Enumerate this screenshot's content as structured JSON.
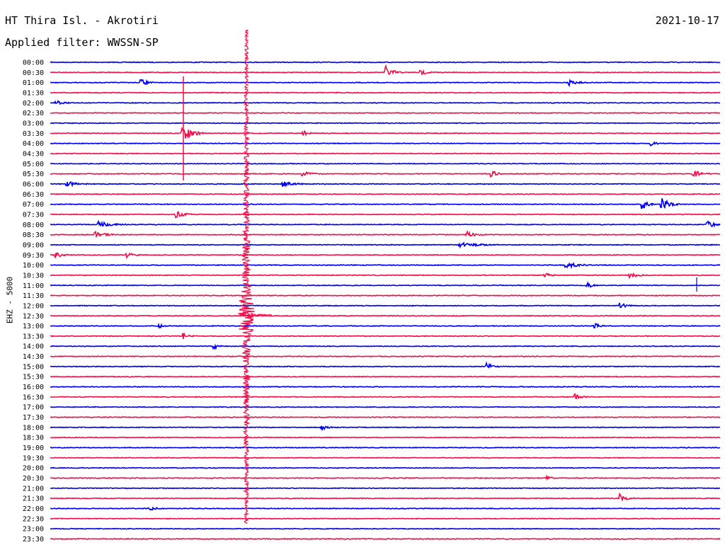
{
  "header": {
    "station": "HT Thira Isl. - Akrotiri",
    "date": "2021-10-17",
    "filter": "Applied filter: WWSSN-SP"
  },
  "axis": {
    "channel_label": "EHZ - 5000"
  },
  "colors": {
    "trace_a": "#0000ee",
    "trace_b": "#ee1149",
    "background": "#ffffff",
    "text": "#000000"
  },
  "rows": [
    {
      "time": "00:00"
    },
    {
      "time": "00:30"
    },
    {
      "time": "01:00"
    },
    {
      "time": "01:30"
    },
    {
      "time": "02:00"
    },
    {
      "time": "02:30"
    },
    {
      "time": "03:00"
    },
    {
      "time": "03:30"
    },
    {
      "time": "04:00"
    },
    {
      "time": "04:30"
    },
    {
      "time": "05:00"
    },
    {
      "time": "05:30"
    },
    {
      "time": "06:00"
    },
    {
      "time": "06:30"
    },
    {
      "time": "07:00"
    },
    {
      "time": "07:30"
    },
    {
      "time": "08:00"
    },
    {
      "time": "08:30"
    },
    {
      "time": "09:00"
    },
    {
      "time": "09:30"
    },
    {
      "time": "10:00"
    },
    {
      "time": "10:30"
    },
    {
      "time": "11:00"
    },
    {
      "time": "11:30"
    },
    {
      "time": "12:00"
    },
    {
      "time": "12:30"
    },
    {
      "time": "13:00"
    },
    {
      "time": "13:30"
    },
    {
      "time": "14:00"
    },
    {
      "time": "14:30"
    },
    {
      "time": "15:00"
    },
    {
      "time": "15:30"
    },
    {
      "time": "16:00"
    },
    {
      "time": "16:30"
    },
    {
      "time": "17:00"
    },
    {
      "time": "17:30"
    },
    {
      "time": "18:00"
    },
    {
      "time": "18:30"
    },
    {
      "time": "19:00"
    },
    {
      "time": "19:30"
    },
    {
      "time": "20:00"
    },
    {
      "time": "20:30"
    },
    {
      "time": "21:00"
    },
    {
      "time": "21:30"
    },
    {
      "time": "22:00"
    },
    {
      "time": "22:30"
    },
    {
      "time": "23:00"
    },
    {
      "time": "23:30"
    }
  ]
}
